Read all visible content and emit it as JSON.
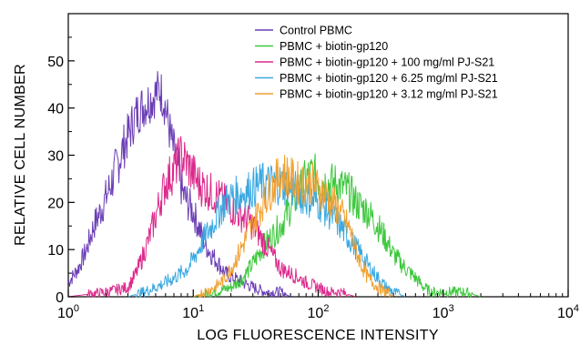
{
  "chart_data": {
    "type": "line",
    "title": "",
    "xlabel": "LOG FLUORESCENCE INTENSITY",
    "ylabel": "RELATIVE CELL NUMBER",
    "xscale": "log",
    "xlim": [
      1,
      10000
    ],
    "ylim": [
      0,
      60
    ],
    "x_ticks": [
      {
        "value": 1,
        "base": "10",
        "exp": "0"
      },
      {
        "value": 10,
        "base": "10",
        "exp": "1"
      },
      {
        "value": 100,
        "base": "10",
        "exp": "2"
      },
      {
        "value": 1000,
        "base": "10",
        "exp": "3"
      },
      {
        "value": 10000,
        "base": "10",
        "exp": "4"
      }
    ],
    "y_ticks": [
      0,
      10,
      20,
      30,
      40,
      50
    ],
    "grid": false,
    "legend_position": "top-right",
    "series": [
      {
        "name": "Control PBMC",
        "color": "#6a3db5",
        "points": [
          [
            1.0,
            3
          ],
          [
            1.2,
            6
          ],
          [
            1.4,
            10
          ],
          [
            1.6,
            15
          ],
          [
            1.8,
            18
          ],
          [
            2.0,
            21
          ],
          [
            2.2,
            24
          ],
          [
            2.4,
            27
          ],
          [
            2.7,
            31
          ],
          [
            3.0,
            34
          ],
          [
            3.4,
            38
          ],
          [
            3.8,
            40
          ],
          [
            4.2,
            41
          ],
          [
            4.6,
            42
          ],
          [
            5.0,
            43
          ],
          [
            5.4,
            44
          ],
          [
            5.8,
            42
          ],
          [
            6.2,
            38
          ],
          [
            6.8,
            32
          ],
          [
            7.5,
            28
          ],
          [
            8.2,
            22
          ],
          [
            9.0,
            20
          ],
          [
            10.0,
            18
          ],
          [
            11.0,
            15
          ],
          [
            12.5,
            11
          ],
          [
            14.0,
            9
          ],
          [
            16.0,
            7
          ],
          [
            18.0,
            5
          ],
          [
            21.0,
            4
          ],
          [
            25.0,
            3
          ],
          [
            30.0,
            2
          ],
          [
            38.0,
            1
          ],
          [
            50.0,
            1
          ],
          [
            60.0,
            0
          ]
        ]
      },
      {
        "name": "PBMC + biotin-gp120",
        "color": "#3cc83c",
        "points": [
          [
            10,
            0
          ],
          [
            15,
            1
          ],
          [
            20,
            2
          ],
          [
            25,
            4
          ],
          [
            30,
            7
          ],
          [
            35,
            10
          ],
          [
            40,
            12
          ],
          [
            50,
            15
          ],
          [
            60,
            19
          ],
          [
            70,
            22
          ],
          [
            80,
            25
          ],
          [
            90,
            26
          ],
          [
            100,
            25
          ],
          [
            120,
            24
          ],
          [
            140,
            24
          ],
          [
            160,
            23
          ],
          [
            180,
            22
          ],
          [
            200,
            20
          ],
          [
            250,
            18
          ],
          [
            300,
            15
          ],
          [
            350,
            12
          ],
          [
            400,
            9
          ],
          [
            500,
            6
          ],
          [
            600,
            4
          ],
          [
            700,
            2
          ],
          [
            800,
            1
          ],
          [
            1000,
            1
          ],
          [
            1500,
            1
          ],
          [
            2000,
            0
          ]
        ]
      },
      {
        "name": "PBMC + biotin-gp120 + 100 mg/ml PJ-S21",
        "color": "#dc2a8c",
        "points": [
          [
            1.0,
            0
          ],
          [
            2.0,
            1
          ],
          [
            3.0,
            2
          ],
          [
            3.5,
            5
          ],
          [
            4.0,
            9
          ],
          [
            4.5,
            13
          ],
          [
            5.0,
            17
          ],
          [
            5.5,
            21
          ],
          [
            6.0,
            24
          ],
          [
            7.0,
            27
          ],
          [
            8.0,
            30
          ],
          [
            9.0,
            28
          ],
          [
            10.0,
            26
          ],
          [
            11.0,
            24
          ],
          [
            12.5,
            23
          ],
          [
            14.0,
            22
          ],
          [
            16.0,
            21
          ],
          [
            18.0,
            20
          ],
          [
            20.0,
            19
          ],
          [
            22.0,
            18
          ],
          [
            25.0,
            17
          ],
          [
            28.0,
            16
          ],
          [
            32.0,
            14
          ],
          [
            36.0,
            12
          ],
          [
            40.0,
            10
          ],
          [
            45.0,
            8
          ],
          [
            50.0,
            6
          ],
          [
            60.0,
            5
          ],
          [
            70.0,
            4
          ],
          [
            80.0,
            3
          ],
          [
            100.0,
            2
          ],
          [
            120.0,
            1
          ],
          [
            150.0,
            1
          ],
          [
            200.0,
            0
          ]
        ]
      },
      {
        "name": "PBMC + biotin-gp120 + 6.25 mg/ml PJ-S21",
        "color": "#3aa8e0",
        "points": [
          [
            3,
            0
          ],
          [
            4,
            1
          ],
          [
            5,
            2
          ],
          [
            6,
            3
          ],
          [
            7,
            4
          ],
          [
            8,
            5
          ],
          [
            9,
            6
          ],
          [
            10,
            8
          ],
          [
            11,
            10
          ],
          [
            12,
            12
          ],
          [
            14,
            15
          ],
          [
            16,
            18
          ],
          [
            18,
            20
          ],
          [
            20,
            21
          ],
          [
            25,
            22
          ],
          [
            30,
            23
          ],
          [
            35,
            24
          ],
          [
            40,
            24
          ],
          [
            50,
            24
          ],
          [
            60,
            23
          ],
          [
            70,
            22
          ],
          [
            80,
            21
          ],
          [
            100,
            20
          ],
          [
            120,
            18
          ],
          [
            150,
            15
          ],
          [
            180,
            12
          ],
          [
            220,
            9
          ],
          [
            260,
            6
          ],
          [
            300,
            4
          ],
          [
            350,
            2
          ],
          [
            400,
            1
          ],
          [
            500,
            0
          ]
        ]
      },
      {
        "name": "PBMC + biotin-gp120 + 3.12 mg/ml PJ-S21",
        "color": "#f0a030",
        "points": [
          [
            10,
            0
          ],
          [
            15,
            2
          ],
          [
            18,
            4
          ],
          [
            20,
            6
          ],
          [
            22,
            8
          ],
          [
            25,
            11
          ],
          [
            28,
            14
          ],
          [
            32,
            17
          ],
          [
            36,
            20
          ],
          [
            40,
            22
          ],
          [
            45,
            24
          ],
          [
            50,
            26
          ],
          [
            55,
            26
          ],
          [
            60,
            25
          ],
          [
            70,
            24
          ],
          [
            80,
            24
          ],
          [
            90,
            24
          ],
          [
            100,
            23
          ],
          [
            110,
            22
          ],
          [
            130,
            20
          ],
          [
            150,
            18
          ],
          [
            180,
            14
          ],
          [
            200,
            10
          ],
          [
            220,
            7
          ],
          [
            250,
            4
          ],
          [
            300,
            2
          ],
          [
            350,
            1
          ],
          [
            400,
            0
          ]
        ]
      }
    ]
  }
}
